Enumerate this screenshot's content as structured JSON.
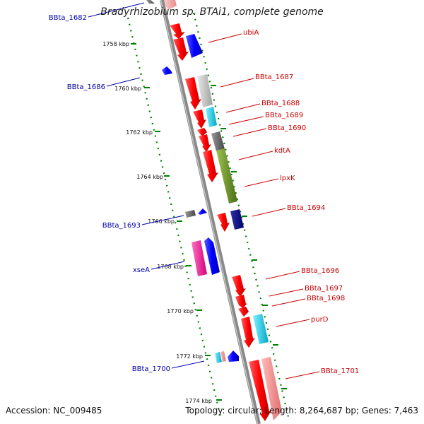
{
  "title": "Bradyrhizobium sp. BTAi1, complete genome",
  "footer": {
    "accession_label": "Accession:",
    "accession": "NC_009485",
    "topology_label": "Topology:",
    "topology": "circular",
    "length_label": "Length:",
    "length": "8,264,687 bp",
    "genes_label": "Genes:",
    "genes": "7,463"
  },
  "colors": {
    "right_label": "#cc0000",
    "left_label": "#0000aa",
    "backbone": "#888888",
    "tick": "#008000"
  },
  "ruler": [
    {
      "label": "1758 kbp"
    },
    {
      "label": "1760 kbp"
    },
    {
      "label": "1762 kbp"
    },
    {
      "label": "1764 kbp"
    },
    {
      "label": "1766 kbp"
    },
    {
      "label": "1768 kbp"
    },
    {
      "label": "1770 kbp"
    },
    {
      "label": "1772 kbp"
    },
    {
      "label": "1774 kbp"
    }
  ],
  "left_labels": [
    "BBta_1682",
    "BBta_1686",
    "BBta_1693",
    "xseA",
    "BBta_1700"
  ],
  "right_labels": [
    "ubiA",
    "BBta_1687",
    "BBta_1688",
    "BBta_1689",
    "BBta_1690",
    "kdtA",
    "lpxK",
    "BBta_1694",
    "BBta_1696",
    "BBta_1697",
    "BBta_1698",
    "purD",
    "BBta_1701"
  ]
}
